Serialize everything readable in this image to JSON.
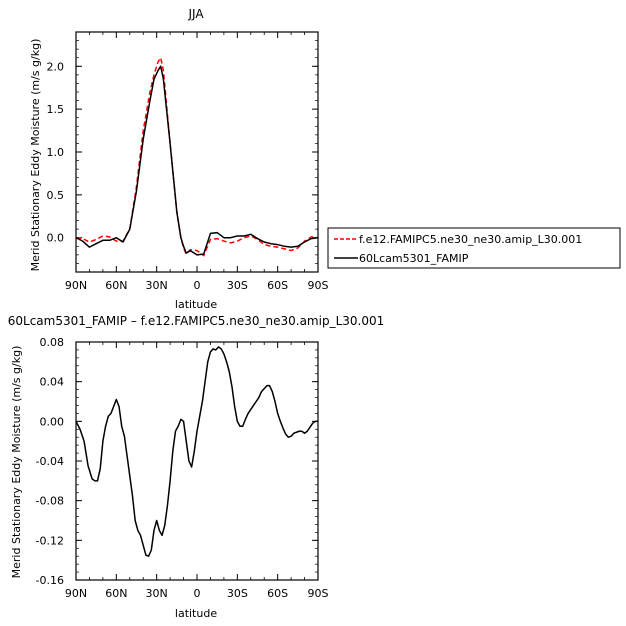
{
  "chart_data": [
    {
      "type": "line",
      "title": "JJA",
      "xlabel": "latitude",
      "ylabel": "Merid Stationary Eddy Moisture (m/s g/kg)",
      "x_tick_labels": [
        "90N",
        "60N",
        "30N",
        "0",
        "30S",
        "60S",
        "90S"
      ],
      "x_tick_values": [
        90,
        60,
        30,
        0,
        -30,
        -60,
        -90
      ],
      "xlim": [
        90,
        -90
      ],
      "ylim": [
        -0.4,
        2.4
      ],
      "y_ticks": [
        "0.0",
        "0.5",
        "1.0",
        "1.5",
        "2.0"
      ],
      "y_tick_values": [
        0,
        0.5,
        1.0,
        1.5,
        2.0
      ],
      "legend_position": "right",
      "x": [
        90,
        85,
        80,
        75,
        70,
        65,
        60,
        55,
        50,
        45,
        40,
        35,
        32,
        29,
        27,
        25,
        20,
        15,
        12,
        10,
        8,
        5,
        0,
        -5,
        -10,
        -15,
        -20,
        -25,
        -30,
        -35,
        -40,
        -45,
        -50,
        -55,
        -60,
        -65,
        -70,
        -75,
        -80,
        -85,
        -90
      ],
      "series": [
        {
          "name": "f.e12.FAMIPC5.ne30_ne30.amip_L30.001",
          "color": "#ff0000",
          "dash": "dashed",
          "values": [
            0.0,
            -0.01,
            -0.05,
            -0.02,
            0.02,
            0.01,
            -0.04,
            -0.04,
            0.1,
            0.6,
            1.25,
            1.7,
            1.9,
            2.05,
            2.1,
            1.95,
            1.1,
            0.3,
            0.0,
            -0.12,
            -0.19,
            -0.14,
            -0.15,
            -0.21,
            -0.02,
            -0.01,
            -0.04,
            -0.06,
            -0.04,
            0.0,
            0.02,
            -0.02,
            -0.08,
            -0.1,
            -0.11,
            -0.13,
            -0.15,
            -0.12,
            -0.04,
            0.01,
            0.0
          ]
        },
        {
          "name": "60Lcam5301_FAMIP",
          "color": "#000000",
          "dash": "solid",
          "values": [
            0.0,
            -0.04,
            -0.11,
            -0.07,
            -0.03,
            -0.03,
            0.0,
            -0.05,
            0.1,
            0.55,
            1.15,
            1.6,
            1.85,
            1.95,
            2.0,
            1.85,
            1.1,
            0.3,
            0.0,
            -0.1,
            -0.18,
            -0.15,
            -0.2,
            -0.19,
            0.05,
            0.06,
            0.0,
            0.0,
            0.02,
            0.02,
            0.04,
            -0.01,
            -0.05,
            -0.07,
            -0.08,
            -0.1,
            -0.11,
            -0.1,
            -0.05,
            -0.01,
            0.0
          ]
        }
      ]
    },
    {
      "type": "line",
      "title": "60Lcam5301_FAMIP – f.e12.FAMIPC5.ne30_ne30.amip_L30.001",
      "xlabel": "latitude",
      "ylabel": "Merid Stationary Eddy Moisture (m/s g/kg)",
      "x_tick_labels": [
        "90N",
        "60N",
        "30N",
        "0",
        "30S",
        "60S",
        "90S"
      ],
      "x_tick_values": [
        90,
        60,
        30,
        0,
        -30,
        -60,
        -90
      ],
      "xlim": [
        90,
        -90
      ],
      "ylim": [
        -0.16,
        0.08
      ],
      "y_ticks": [
        "0.08",
        "0.04",
        "0.00",
        "-0.04",
        "-0.08",
        "-0.12",
        "-0.16"
      ],
      "y_tick_values": [
        0.08,
        0.04,
        0.0,
        -0.04,
        -0.08,
        -0.12,
        -0.16
      ],
      "x": [
        90,
        87,
        84,
        81,
        78,
        76,
        74,
        72,
        70,
        68,
        66,
        64,
        62,
        60,
        58,
        56,
        54,
        52,
        50,
        48,
        46,
        44,
        42,
        40,
        38,
        36,
        34,
        32,
        30,
        28,
        26,
        24,
        22,
        20,
        18,
        16,
        14,
        12,
        10,
        8,
        6,
        4,
        2,
        0,
        -2,
        -4,
        -6,
        -8,
        -10,
        -12,
        -14,
        -16,
        -18,
        -20,
        -22,
        -24,
        -26,
        -28,
        -30,
        -32,
        -34,
        -36,
        -38,
        -40,
        -42,
        -44,
        -46,
        -48,
        -50,
        -52,
        -54,
        -56,
        -58,
        -60,
        -62,
        -64,
        -66,
        -68,
        -70,
        -72,
        -74,
        -76,
        -78,
        -80,
        -82,
        -84,
        -86,
        -88,
        -90
      ],
      "series": [
        {
          "name": "",
          "color": "#000000",
          "dash": "solid",
          "values": [
            0.0,
            -0.008,
            -0.02,
            -0.045,
            -0.058,
            -0.06,
            -0.06,
            -0.048,
            -0.02,
            -0.005,
            0.005,
            0.008,
            0.015,
            0.022,
            0.015,
            -0.005,
            -0.015,
            -0.035,
            -0.055,
            -0.075,
            -0.1,
            -0.11,
            -0.115,
            -0.125,
            -0.135,
            -0.136,
            -0.13,
            -0.11,
            -0.1,
            -0.11,
            -0.115,
            -0.105,
            -0.085,
            -0.06,
            -0.03,
            -0.01,
            -0.005,
            0.002,
            0.0,
            -0.02,
            -0.04,
            -0.046,
            -0.03,
            -0.01,
            0.005,
            0.02,
            0.04,
            0.06,
            0.07,
            0.073,
            0.072,
            0.075,
            0.073,
            0.068,
            0.06,
            0.05,
            0.035,
            0.015,
            0.0,
            -0.005,
            -0.005,
            0.002,
            0.008,
            0.012,
            0.016,
            0.02,
            0.024,
            0.03,
            0.033,
            0.036,
            0.036,
            0.03,
            0.02,
            0.008,
            0.0,
            -0.007,
            -0.013,
            -0.016,
            -0.015,
            -0.012,
            -0.011,
            -0.01,
            -0.01,
            -0.012,
            -0.01,
            -0.006,
            -0.002,
            0.0,
            0.0
          ]
        }
      ]
    }
  ]
}
